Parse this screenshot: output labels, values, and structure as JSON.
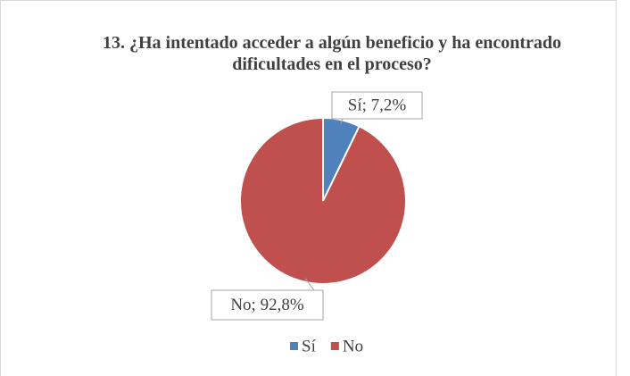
{
  "chart_data": {
    "type": "pie",
    "title": "13. ¿Ha intentado acceder a algún beneficio y ha encontrado dificultades en el proceso?",
    "categories": [
      "Sí",
      "No"
    ],
    "values": [
      7.2,
      92.8
    ],
    "value_labels": [
      "Sí; 7,2%",
      "No; 92,8%"
    ],
    "colors": [
      "#4f81bd",
      "#c0504d"
    ],
    "legend": "bottom"
  }
}
